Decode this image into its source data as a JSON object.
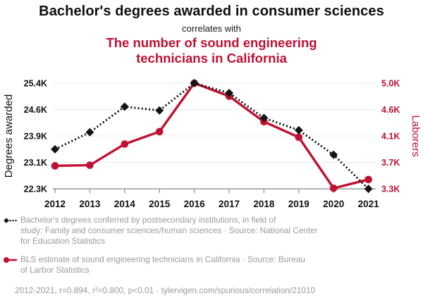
{
  "colors": {
    "accent_red": "#bf1133",
    "series_black": "#141414",
    "muted_gray": "#9b9b9b",
    "grid_gray": "#ececec",
    "axis_gray": "#999999"
  },
  "header": {
    "title": "Bachelor's degrees awarded in consumer sciences",
    "connector": "correlates with",
    "subtitle_lines": [
      "The number of sound engineering",
      "technicians in California"
    ]
  },
  "chart_data": {
    "type": "line",
    "x": [
      2012,
      2013,
      2014,
      2015,
      2016,
      2017,
      2018,
      2019,
      2020,
      2021
    ],
    "series": [
      {
        "name": "Bachelor's degrees awarded in consumer sciences",
        "axis": "left",
        "color_key": "series_black",
        "style": "dashed",
        "marker": "diamond",
        "values": [
          23460,
          23960,
          24710,
          24600,
          25400,
          25110,
          24380,
          24020,
          23300,
          22300
        ]
      },
      {
        "name": "Sound engineering technicians in California",
        "axis": "right",
        "color_key": "accent_red",
        "style": "solid",
        "marker": "circle",
        "values": [
          3670,
          3680,
          4020,
          4220,
          5000,
          4790,
          4380,
          4130,
          3310,
          3450
        ]
      }
    ],
    "left_axis": {
      "label": "Degrees awarded",
      "min": 22300,
      "max": 25400,
      "ticks": [
        "25.4K",
        "24.6K",
        "23.9K",
        "23.1K",
        "22.3K"
      ]
    },
    "right_axis": {
      "label": "Laborers",
      "min": 3300,
      "max": 5000,
      "ticks": [
        "5.0K",
        "4.6K",
        "4.1K",
        "3.7K",
        "3.3K"
      ]
    },
    "grid": true,
    "legend_position": "bottom"
  },
  "legend": [
    {
      "lines": [
        "Bachelor's degrees conferred by postsecondary institutions, in field of",
        "study: Family and consumer sciences/human sciences · Source: National Center",
        "for Education Statistics"
      ]
    },
    {
      "lines": [
        "BLS estimate of sound engineering technicians in California · Source: Bureau",
        "of Larbor Statistics"
      ]
    }
  ],
  "footer": "2012-2021, r=0.894, r²=0.800, p<0.01 · tylervigen.com/spurious/correlation/21010"
}
